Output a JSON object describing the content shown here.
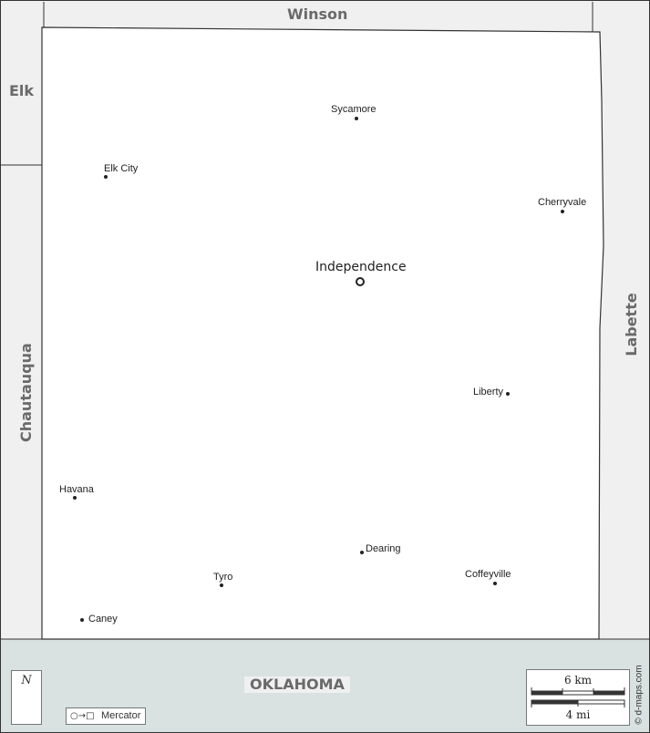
{
  "map": {
    "neighbors": {
      "north": "Winson",
      "west_upper": "Elk",
      "west_lower": "Chautauqua",
      "east": "Labette",
      "south": "OKLAHOMA"
    },
    "capital": {
      "name": "Independence"
    },
    "cities": [
      {
        "name": "Sycamore"
      },
      {
        "name": "Elk City"
      },
      {
        "name": "Cherryvale"
      },
      {
        "name": "Liberty"
      },
      {
        "name": "Havana"
      },
      {
        "name": "Dearing"
      },
      {
        "name": "Tyro"
      },
      {
        "name": "Coffeyville"
      },
      {
        "name": "Caney"
      }
    ],
    "colors": {
      "county_fill": "#ffffff",
      "neighbor_fill": "#f0f0f0",
      "state_fill": "#d9e1e1",
      "border": "#333333",
      "label_gray": "#6a6a6a"
    }
  },
  "legend": {
    "north_letter": "N",
    "projection_icons": "○→□",
    "projection_name": "Mercator",
    "scale_km": "6 km",
    "scale_mi": "4 mi",
    "copyright": "© d-maps.com"
  }
}
